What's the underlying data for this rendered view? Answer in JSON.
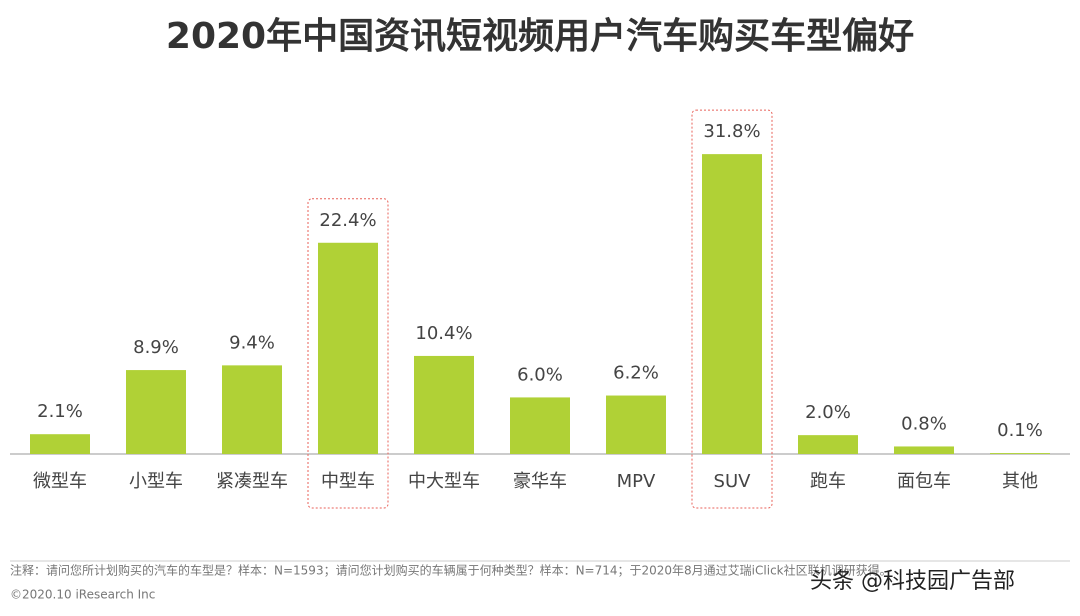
{
  "chart_data": {
    "type": "bar",
    "title": "2020年中国资讯短视频用户汽车购买车型偏好",
    "categories": [
      "微型车",
      "小型车",
      "紧凑型车",
      "中型车",
      "中大型车",
      "豪华车",
      "MPV",
      "SUV",
      "跑车",
      "面包车",
      "其他"
    ],
    "values": [
      2.1,
      8.9,
      9.4,
      22.4,
      10.4,
      6.0,
      6.2,
      31.8,
      2.0,
      0.8,
      0.1
    ],
    "value_labels": [
      "2.1%",
      "8.9%",
      "9.4%",
      "22.4%",
      "10.4%",
      "6.0%",
      "6.2%",
      "31.8%",
      "2.0%",
      "0.8%",
      "0.1%"
    ],
    "color": "#b0d136",
    "highlight": [
      3,
      7
    ],
    "highlight_color": "#e8625a",
    "note": "注释：请问您所计划购买的汽车的车型是？样本：N=1593；请问您计划购买的车辆属于何种类型？样本：N=714；于2020年8月通过艾瑞iClick社区联机调研获得。",
    "source": "©2020.10 iResearch Inc",
    "watermark": "头条 @科技园广告部"
  }
}
